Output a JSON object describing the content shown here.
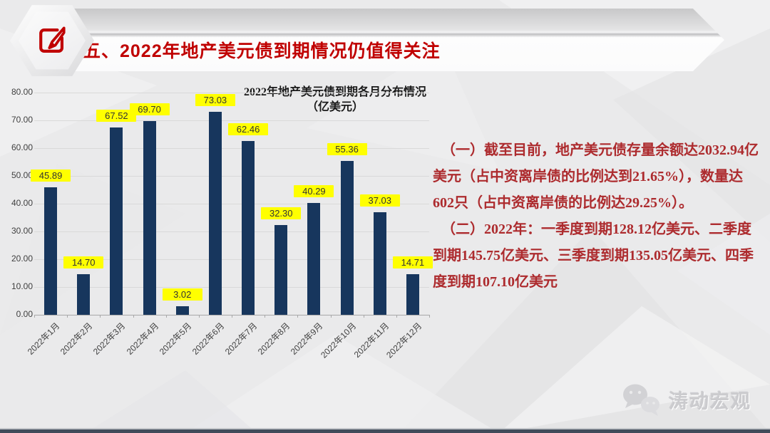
{
  "header": {
    "title": "五、2022年地产美元债到期情况仍值得关注",
    "icon": "edit-pencil-icon"
  },
  "chart_data": {
    "type": "bar",
    "title": "2022年地产美元债到期各月分布情况",
    "subtitle": "（亿美元）",
    "categories": [
      "2022年1月",
      "2022年2月",
      "2022年3月",
      "2022年4月",
      "2022年5月",
      "2022年6月",
      "2022年7月",
      "2022年8月",
      "2022年9月",
      "2022年10月",
      "2022年11月",
      "2022年12月"
    ],
    "values": [
      45.89,
      14.7,
      67.52,
      69.7,
      3.02,
      73.03,
      62.46,
      32.3,
      40.29,
      55.36,
      37.03,
      14.71
    ],
    "labels": [
      "45.89",
      "14.70",
      "67.52",
      "69.70",
      "3.02",
      "73.03",
      "62.46",
      "32.30",
      "40.29",
      "55.36",
      "37.03",
      "14.71"
    ],
    "xlabel": "",
    "ylabel": "",
    "ylim": [
      0,
      80
    ],
    "yticks": [
      "0.00",
      "10.00",
      "20.00",
      "30.00",
      "40.00",
      "50.00",
      "60.00",
      "70.00",
      "80.00"
    ],
    "grid": true,
    "legend": "none",
    "bar_color": "#17365d",
    "label_bg": "#ffff00"
  },
  "notes": {
    "para1": "（一）截至目前，地产美元债存量余额达2032.94亿美元（占中资离岸债的比例达到21.65%），数量达602只（占中资离岸债的比例达29.25%）。",
    "para2": "（二）2022年：一季度到期128.12亿美元、二季度到期145.75亿美元、三季度到期135.05亿美元、四季度到期107.10亿美元"
  },
  "footer": {
    "brand": "涛动宏观",
    "icon": "wechat-icon"
  },
  "colors": {
    "title_red": "#c00000",
    "notes_red": "#ad2b2e",
    "background": "#eaeaeb",
    "bottom_strip": "#414b5a"
  }
}
